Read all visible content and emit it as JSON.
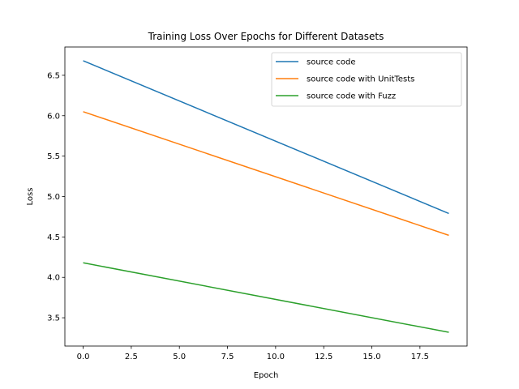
{
  "chart_data": {
    "type": "line",
    "title": "Training Loss Over Epochs for Different Datasets",
    "xlabel": "Epoch",
    "ylabel": "Loss",
    "xlim": [
      -0.95,
      19.95
    ],
    "ylim": [
      3.15,
      6.85
    ],
    "x": [
      0,
      19
    ],
    "xticks": [
      0,
      2.5,
      5,
      7.5,
      10,
      12.5,
      15,
      17.5
    ],
    "xtick_labels": [
      "0.0",
      "2.5",
      "5.0",
      "7.5",
      "10.0",
      "12.5",
      "15.0",
      "17.5"
    ],
    "yticks": [
      3.5,
      4.0,
      4.5,
      5.0,
      5.5,
      6.0,
      6.5
    ],
    "ytick_labels": [
      "3.5",
      "4.0",
      "4.5",
      "5.0",
      "5.5",
      "6.0",
      "6.5"
    ],
    "grid": false,
    "legend_position": "top-right",
    "series": [
      {
        "name": "source code",
        "color": "#1f77b4",
        "values": [
          6.68,
          4.79
        ]
      },
      {
        "name": "source code with UnitTests",
        "color": "#ff7f0e",
        "values": [
          6.05,
          4.52
        ]
      },
      {
        "name": "source code with Fuzz",
        "color": "#2ca02c",
        "values": [
          4.18,
          3.32
        ]
      }
    ]
  }
}
